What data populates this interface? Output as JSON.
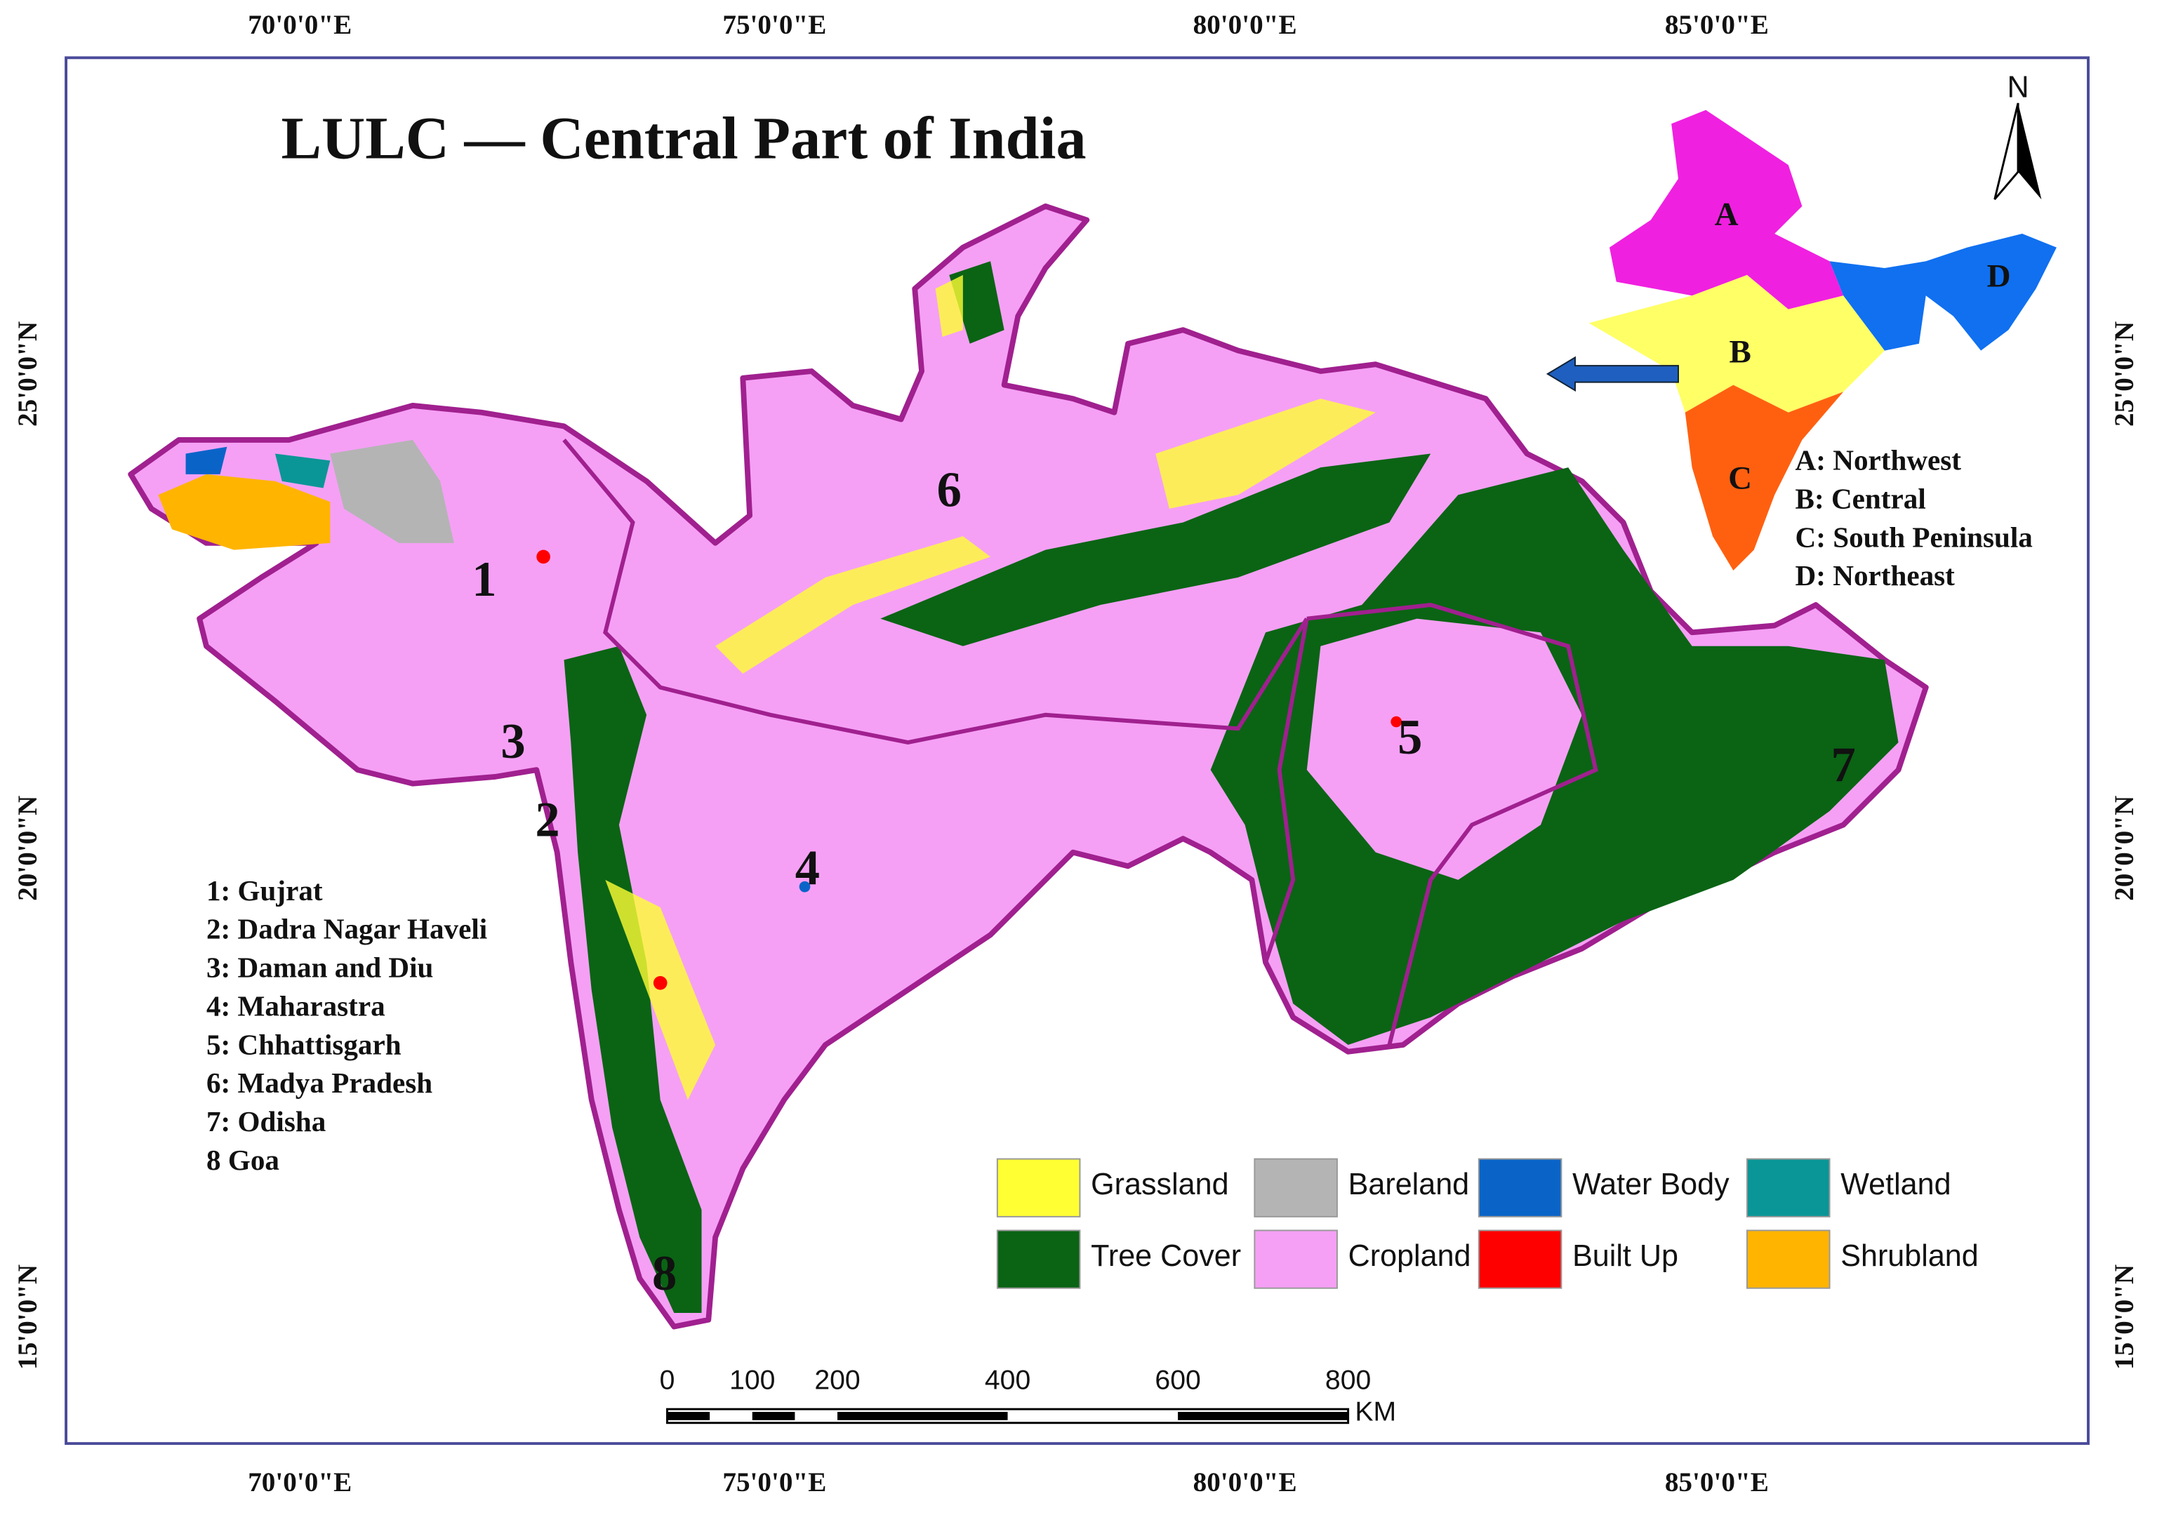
{
  "title": "LULC — Central Part of India",
  "top_axis": [
    "70'0'0\"E",
    "75'0'0\"E",
    "80'0'0\"E",
    "85'0'0\"E"
  ],
  "bottom_axis": [
    "70'0'0\"E",
    "75'0'0\"E",
    "80'0'0\"E",
    "85'0'0\"E"
  ],
  "left_axis": [
    "25'0'0\"N",
    "20'0'0\"N",
    "15'0'0\"N"
  ],
  "right_axis": [
    "25'0'0\"N",
    "20'0'0\"N",
    "15'0'0\"N"
  ],
  "map_numbers": [
    "1",
    "2",
    "3",
    "4",
    "5",
    "6",
    "7",
    "8"
  ],
  "state_key": [
    "1: Gujrat",
    "2: Dadra Nagar Haveli",
    "3: Daman and Diu",
    "4: Maharastra",
    "5: Chhattisgarh",
    "6: Madya Pradesh",
    "7: Odisha",
    "8 Goa"
  ],
  "inset": {
    "regions": [
      "A",
      "B",
      "C",
      "D"
    ],
    "key": [
      "A: Northwest",
      "B: Central",
      "C: South Peninsula",
      "D: Northeast"
    ]
  },
  "north": "N",
  "legend": [
    {
      "label": "Grassland",
      "color": "#ffff33"
    },
    {
      "label": "Bareland",
      "color": "#b4b4b4"
    },
    {
      "label": "Water Body",
      "color": "#0a64c8"
    },
    {
      "label": "Wetland",
      "color": "#0a9696"
    },
    {
      "label": "Tree Cover",
      "color": "#0a6414"
    },
    {
      "label": "Cropland",
      "color": "#f5a0f5"
    },
    {
      "label": "Built Up",
      "color": "#ff0000"
    },
    {
      "label": "Shrubland",
      "color": "#ffb400"
    }
  ],
  "scale_bar": {
    "ticks": [
      0,
      100,
      200,
      400,
      600,
      800
    ],
    "unit": "KM"
  }
}
